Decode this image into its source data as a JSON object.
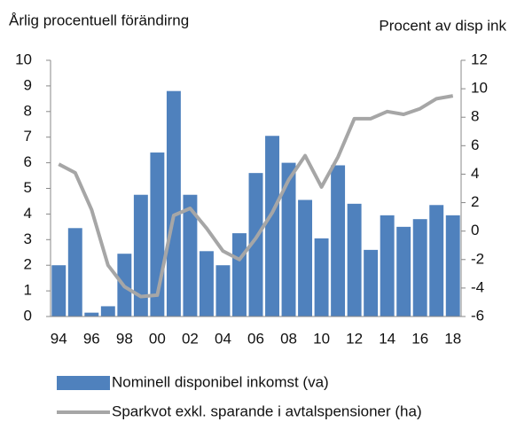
{
  "chart_data": {
    "type": "bar_line",
    "y_title": "Årlig procentuell förändirng",
    "y2_title": "Procent av disp ink",
    "categories": [
      "94",
      null,
      "96",
      null,
      "98",
      null,
      "00",
      null,
      "02",
      null,
      "04",
      null,
      "06",
      null,
      "08",
      null,
      "10",
      null,
      "12",
      null,
      "14",
      null,
      "16",
      null,
      "18"
    ],
    "series": [
      {
        "name": "Nominell disponibel inkomst (va)",
        "type": "bar",
        "color": "#4f81bd",
        "values": [
          2.0,
          3.45,
          0.15,
          0.4,
          2.45,
          4.75,
          6.4,
          8.8,
          4.75,
          2.55,
          2.0,
          3.25,
          5.6,
          7.05,
          6.0,
          4.55,
          3.05,
          5.9,
          4.4,
          2.6,
          3.95,
          3.5,
          3.8,
          4.35,
          3.95
        ]
      },
      {
        "name": "Sparkvot exkl. sparande i avtalspensioner  (ha)",
        "type": "line",
        "axis": "y2",
        "color": "#a6a6a6",
        "values": [
          4.7,
          4.1,
          1.5,
          -2.4,
          -3.9,
          -4.6,
          -4.5,
          1.1,
          1.6,
          0.2,
          -1.4,
          -2.0,
          -0.5,
          1.3,
          3.6,
          5.3,
          3.1,
          5.2,
          7.9,
          7.9,
          8.4,
          8.2,
          8.6,
          9.3,
          9.5
        ]
      }
    ],
    "ylim": [
      0,
      10
    ],
    "yticks": [
      0,
      1,
      2,
      3,
      4,
      5,
      6,
      7,
      8,
      9,
      10
    ],
    "y2lim": [
      -6,
      12
    ],
    "y2ticks": [
      -6,
      -4,
      -2,
      0,
      2,
      4,
      6,
      8,
      10,
      12
    ]
  }
}
